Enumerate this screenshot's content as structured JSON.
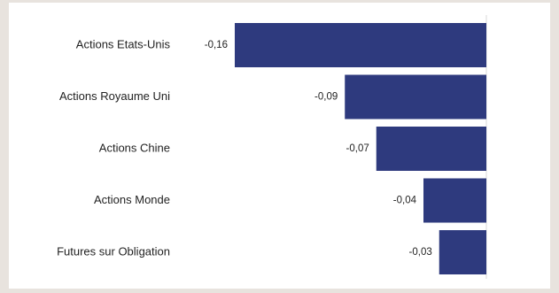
{
  "chart_data": {
    "type": "bar",
    "orientation": "horizontal",
    "categories": [
      "Actions Etats-Unis",
      "Actions Royaume Uni",
      "Actions Chine",
      "Actions Monde",
      "Futures sur Obligation"
    ],
    "values": [
      -0.16,
      -0.09,
      -0.07,
      -0.04,
      -0.03
    ],
    "value_labels": [
      "-0,16",
      "-0,09",
      "-0,07",
      "-0,04",
      "-0,03"
    ],
    "title": "",
    "xlabel": "",
    "ylabel": "",
    "xlim": [
      -0.16,
      0
    ],
    "grid": false,
    "bar_color": "#2e3a7e",
    "axis_line_color": "#d9d9d9"
  }
}
